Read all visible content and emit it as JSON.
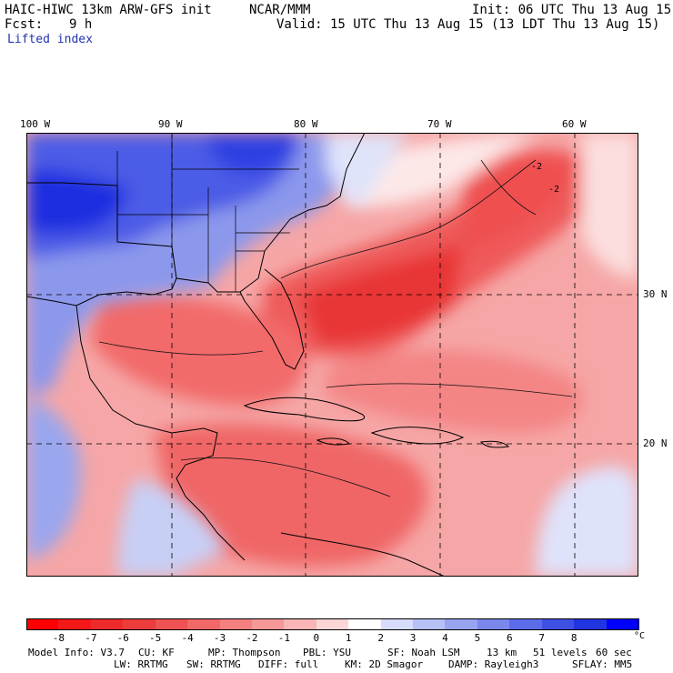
{
  "header": {
    "model_title": "HAIC-HIWC 13km ARW-GFS init",
    "org": "NCAR/MMM",
    "init": "Init: 06 UTC Thu 13 Aug 15",
    "fcst_label": "Fcst:",
    "fcst_value": "9 h",
    "valid": "Valid: 15 UTC Thu 13 Aug 15 (13 LDT Thu 13 Aug 15)",
    "field_name": "Lifted index"
  },
  "map": {
    "lon_labels": [
      "100 W",
      "90 W",
      "80 W",
      "70 W",
      "60 W"
    ],
    "lat_labels": [
      "30 N",
      "20 N"
    ],
    "contour_labels": [
      "-2",
      "-2"
    ],
    "colors": {
      "strong_blue": "#1a22e0",
      "mid_blue": "#5a6be6",
      "light_blue": "#b9c3f2",
      "white": "#ffffff",
      "light_red": "#f9c6c6",
      "mid_red": "#f47b7b",
      "strong_red": "#e82b2b",
      "coast": "#000000",
      "grid": "#000000"
    }
  },
  "colorbar": {
    "labels": [
      "-8",
      "-7",
      "-6",
      "-5",
      "-4",
      "-3",
      "-2",
      "-1",
      "0",
      "1",
      "2",
      "3",
      "4",
      "5",
      "6",
      "7",
      "8"
    ],
    "unit": "°C",
    "colors": [
      "#ff0000",
      "#f51818",
      "#ee2a2a",
      "#ec3c3c",
      "#ee5252",
      "#f06868",
      "#f48080",
      "#f69898",
      "#f9b6b6",
      "#fcd6d6",
      "#ffffff",
      "#d6dcfa",
      "#b6c0f5",
      "#98a4f0",
      "#7a88ec",
      "#5c6ce8",
      "#3e50e4",
      "#2034e0",
      "#0000ff"
    ]
  },
  "footer": {
    "line1": [
      "Model Info: V3.7",
      "CU: KF",
      "MP: Thompson",
      "PBL: YSU",
      "SF: Noah LSM",
      "13 km",
      "51 levels",
      "60 sec"
    ],
    "line2": [
      "LW: RRTMG",
      "SW: RRTMG",
      "DIFF: full",
      "KM: 2D Smagor",
      "DAMP: Rayleigh3",
      "SFLAY: MM5"
    ]
  }
}
